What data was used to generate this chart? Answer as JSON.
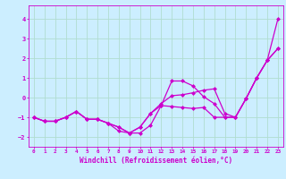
{
  "xlabel": "Windchill (Refroidissement éolien,°C)",
  "bg_color": "#cceeff",
  "grid_color": "#b0ddd0",
  "line_color": "#cc00cc",
  "xlim": [
    -0.5,
    23.5
  ],
  "ylim": [
    -2.5,
    4.7
  ],
  "xticks": [
    0,
    1,
    2,
    3,
    4,
    5,
    6,
    7,
    8,
    9,
    10,
    11,
    12,
    13,
    14,
    15,
    16,
    17,
    18,
    19,
    20,
    21,
    22,
    23
  ],
  "yticks": [
    -2,
    -1,
    0,
    1,
    2,
    3,
    4
  ],
  "line1_x": [
    0,
    1,
    2,
    3,
    4,
    5,
    6,
    7,
    8,
    9,
    10,
    11,
    12,
    13,
    14,
    15,
    16,
    17,
    18,
    19,
    20,
    21,
    22,
    23
  ],
  "line1_y": [
    -1.0,
    -1.2,
    -1.2,
    -1.0,
    -0.7,
    -1.1,
    -1.1,
    -1.3,
    -1.7,
    -1.8,
    -1.8,
    -1.4,
    -0.4,
    0.85,
    0.85,
    0.6,
    0.05,
    -0.3,
    -1.0,
    -1.0,
    -0.05,
    1.0,
    1.9,
    4.0
  ],
  "line2_x": [
    0,
    1,
    2,
    3,
    4,
    5,
    6,
    7,
    8,
    9,
    10,
    11,
    12,
    13,
    14,
    15,
    16,
    17,
    18,
    19,
    20,
    21,
    22,
    23
  ],
  "line2_y": [
    -1.0,
    -1.2,
    -1.2,
    -1.0,
    -0.7,
    -1.1,
    -1.1,
    -1.3,
    -1.5,
    -1.8,
    -1.5,
    -0.8,
    -0.4,
    -0.45,
    -0.5,
    -0.55,
    -0.5,
    -1.0,
    -1.0,
    -1.0,
    -0.05,
    1.0,
    1.9,
    2.5
  ],
  "line3_x": [
    0,
    1,
    2,
    3,
    4,
    5,
    6,
    7,
    8,
    9,
    10,
    11,
    12,
    13,
    14,
    15,
    16,
    17,
    18,
    19,
    20,
    21,
    22,
    23
  ],
  "line3_y": [
    -1.0,
    -1.2,
    -1.2,
    -1.0,
    -0.7,
    -1.1,
    -1.1,
    -1.3,
    -1.5,
    -1.8,
    -1.5,
    -0.8,
    -0.3,
    0.1,
    0.15,
    0.25,
    0.38,
    0.45,
    -0.8,
    -1.0,
    -0.05,
    1.0,
    1.9,
    2.5
  ]
}
